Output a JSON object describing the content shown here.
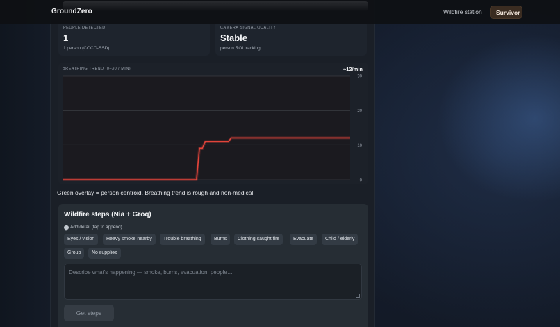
{
  "app": {
    "brand": "GroundZero"
  },
  "nav": {
    "wildfire_label": "Wildfire station",
    "survivor_label": "Survivor"
  },
  "stats": {
    "people": {
      "label": "PEOPLE DETECTED",
      "value": "1",
      "sub": "1 person (COCO-SSD)"
    },
    "signal": {
      "label": "CAMERA SIGNAL QUALITY",
      "value": "Stable",
      "sub": "person ROI tracking"
    }
  },
  "trend": {
    "label": "BREATHING TREND (0–30 / MIN)",
    "rate": "~12/min",
    "line_color": "#e2443a"
  },
  "chart_data": {
    "type": "line",
    "title": "BREATHING TREND (0–30 / MIN)",
    "ylim": [
      0,
      30
    ],
    "yticks": [
      "30",
      "20",
      "10",
      "0"
    ],
    "grid": true,
    "series": [
      {
        "values": [
          0,
          0,
          0,
          0,
          0,
          0,
          0,
          0,
          0,
          0,
          0,
          0,
          0,
          0,
          0,
          0,
          0,
          0,
          0,
          0,
          0,
          0,
          0,
          0,
          0,
          0,
          0,
          0,
          0,
          0,
          0,
          0,
          0,
          0,
          0,
          0,
          0,
          0,
          0,
          0,
          0,
          0,
          0,
          0,
          0,
          0,
          0,
          9,
          9,
          11,
          11,
          11,
          11,
          11,
          11,
          11,
          11,
          11,
          12,
          12,
          12,
          12,
          12,
          12,
          12,
          12,
          12,
          12,
          12,
          12,
          12,
          12,
          12,
          12,
          12,
          12,
          12,
          12,
          12,
          12,
          12,
          12,
          12,
          12,
          12,
          12,
          12,
          12,
          12,
          12,
          12,
          12,
          12,
          12,
          12,
          12,
          12,
          12,
          12,
          12
        ]
      }
    ]
  },
  "caption": "Green overlay = person centroid. Breathing trend is rough and non-medical.",
  "steps": {
    "title": "Wildfire steps (Nia + Groq)",
    "add_detail": "Add detail (tap to append)",
    "chips": [
      "Eyes / vision",
      "Heavy smoke nearby",
      "Trouble breathing",
      "Burns",
      "Clothing caught fire",
      "Evacuate",
      "Child / elderly",
      "Group",
      "No supplies"
    ],
    "placeholder": "Describe what's happening — smoke, burns, evacuation, people…",
    "button": "Get steps"
  }
}
